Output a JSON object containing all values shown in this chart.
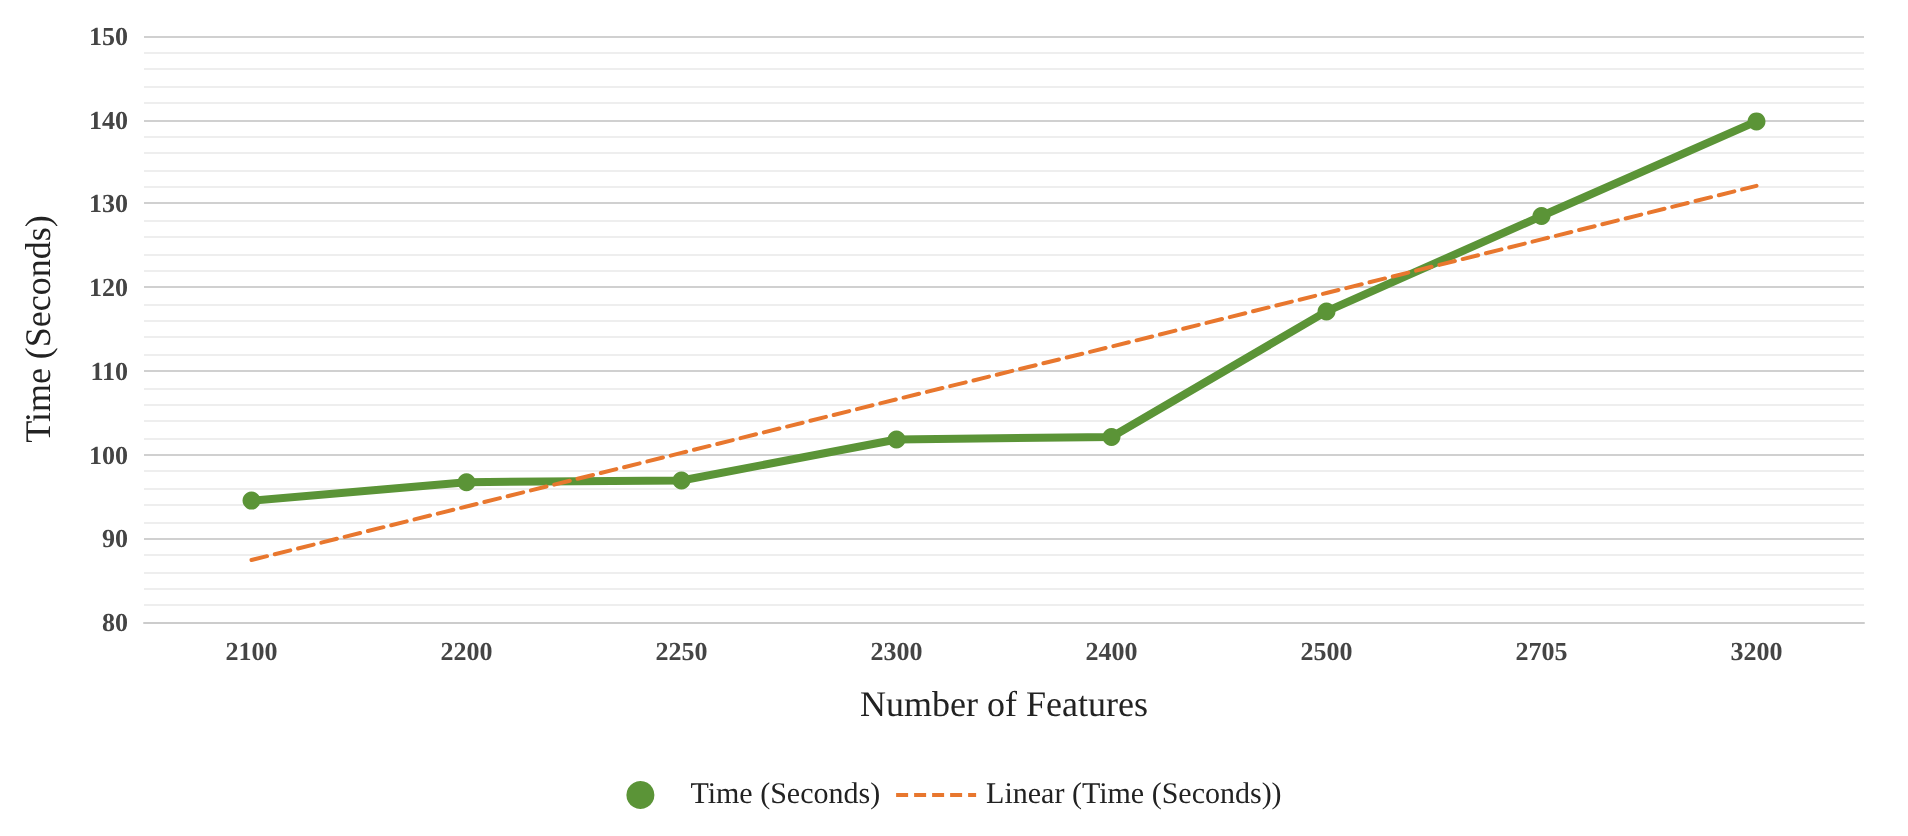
{
  "chart_data": {
    "type": "line",
    "xlabel": "Number of Features",
    "ylabel": "Time (Seconds)",
    "categories": [
      "2100",
      "2200",
      "2250",
      "2300",
      "2400",
      "2500",
      "2705",
      "3200"
    ],
    "series": [
      {
        "name": "Time (Seconds)",
        "color": "#5b9437",
        "values": [
          94.5,
          96.7,
          96.9,
          101.8,
          102.1,
          117.1,
          128.5,
          139.8
        ],
        "marker": "circle",
        "line_style": "solid"
      },
      {
        "name": "Linear (Time (Seconds))",
        "color": "#e8772e",
        "values": [
          87.4,
          93.8,
          100.2,
          106.6,
          112.9,
          119.3,
          125.7,
          132.1
        ],
        "marker": "none",
        "line_style": "dashed"
      }
    ],
    "ylim": [
      80,
      150
    ],
    "yticks": [
      80,
      90,
      100,
      110,
      120,
      130,
      140,
      150
    ],
    "grid": "y",
    "legend": "bottom"
  }
}
